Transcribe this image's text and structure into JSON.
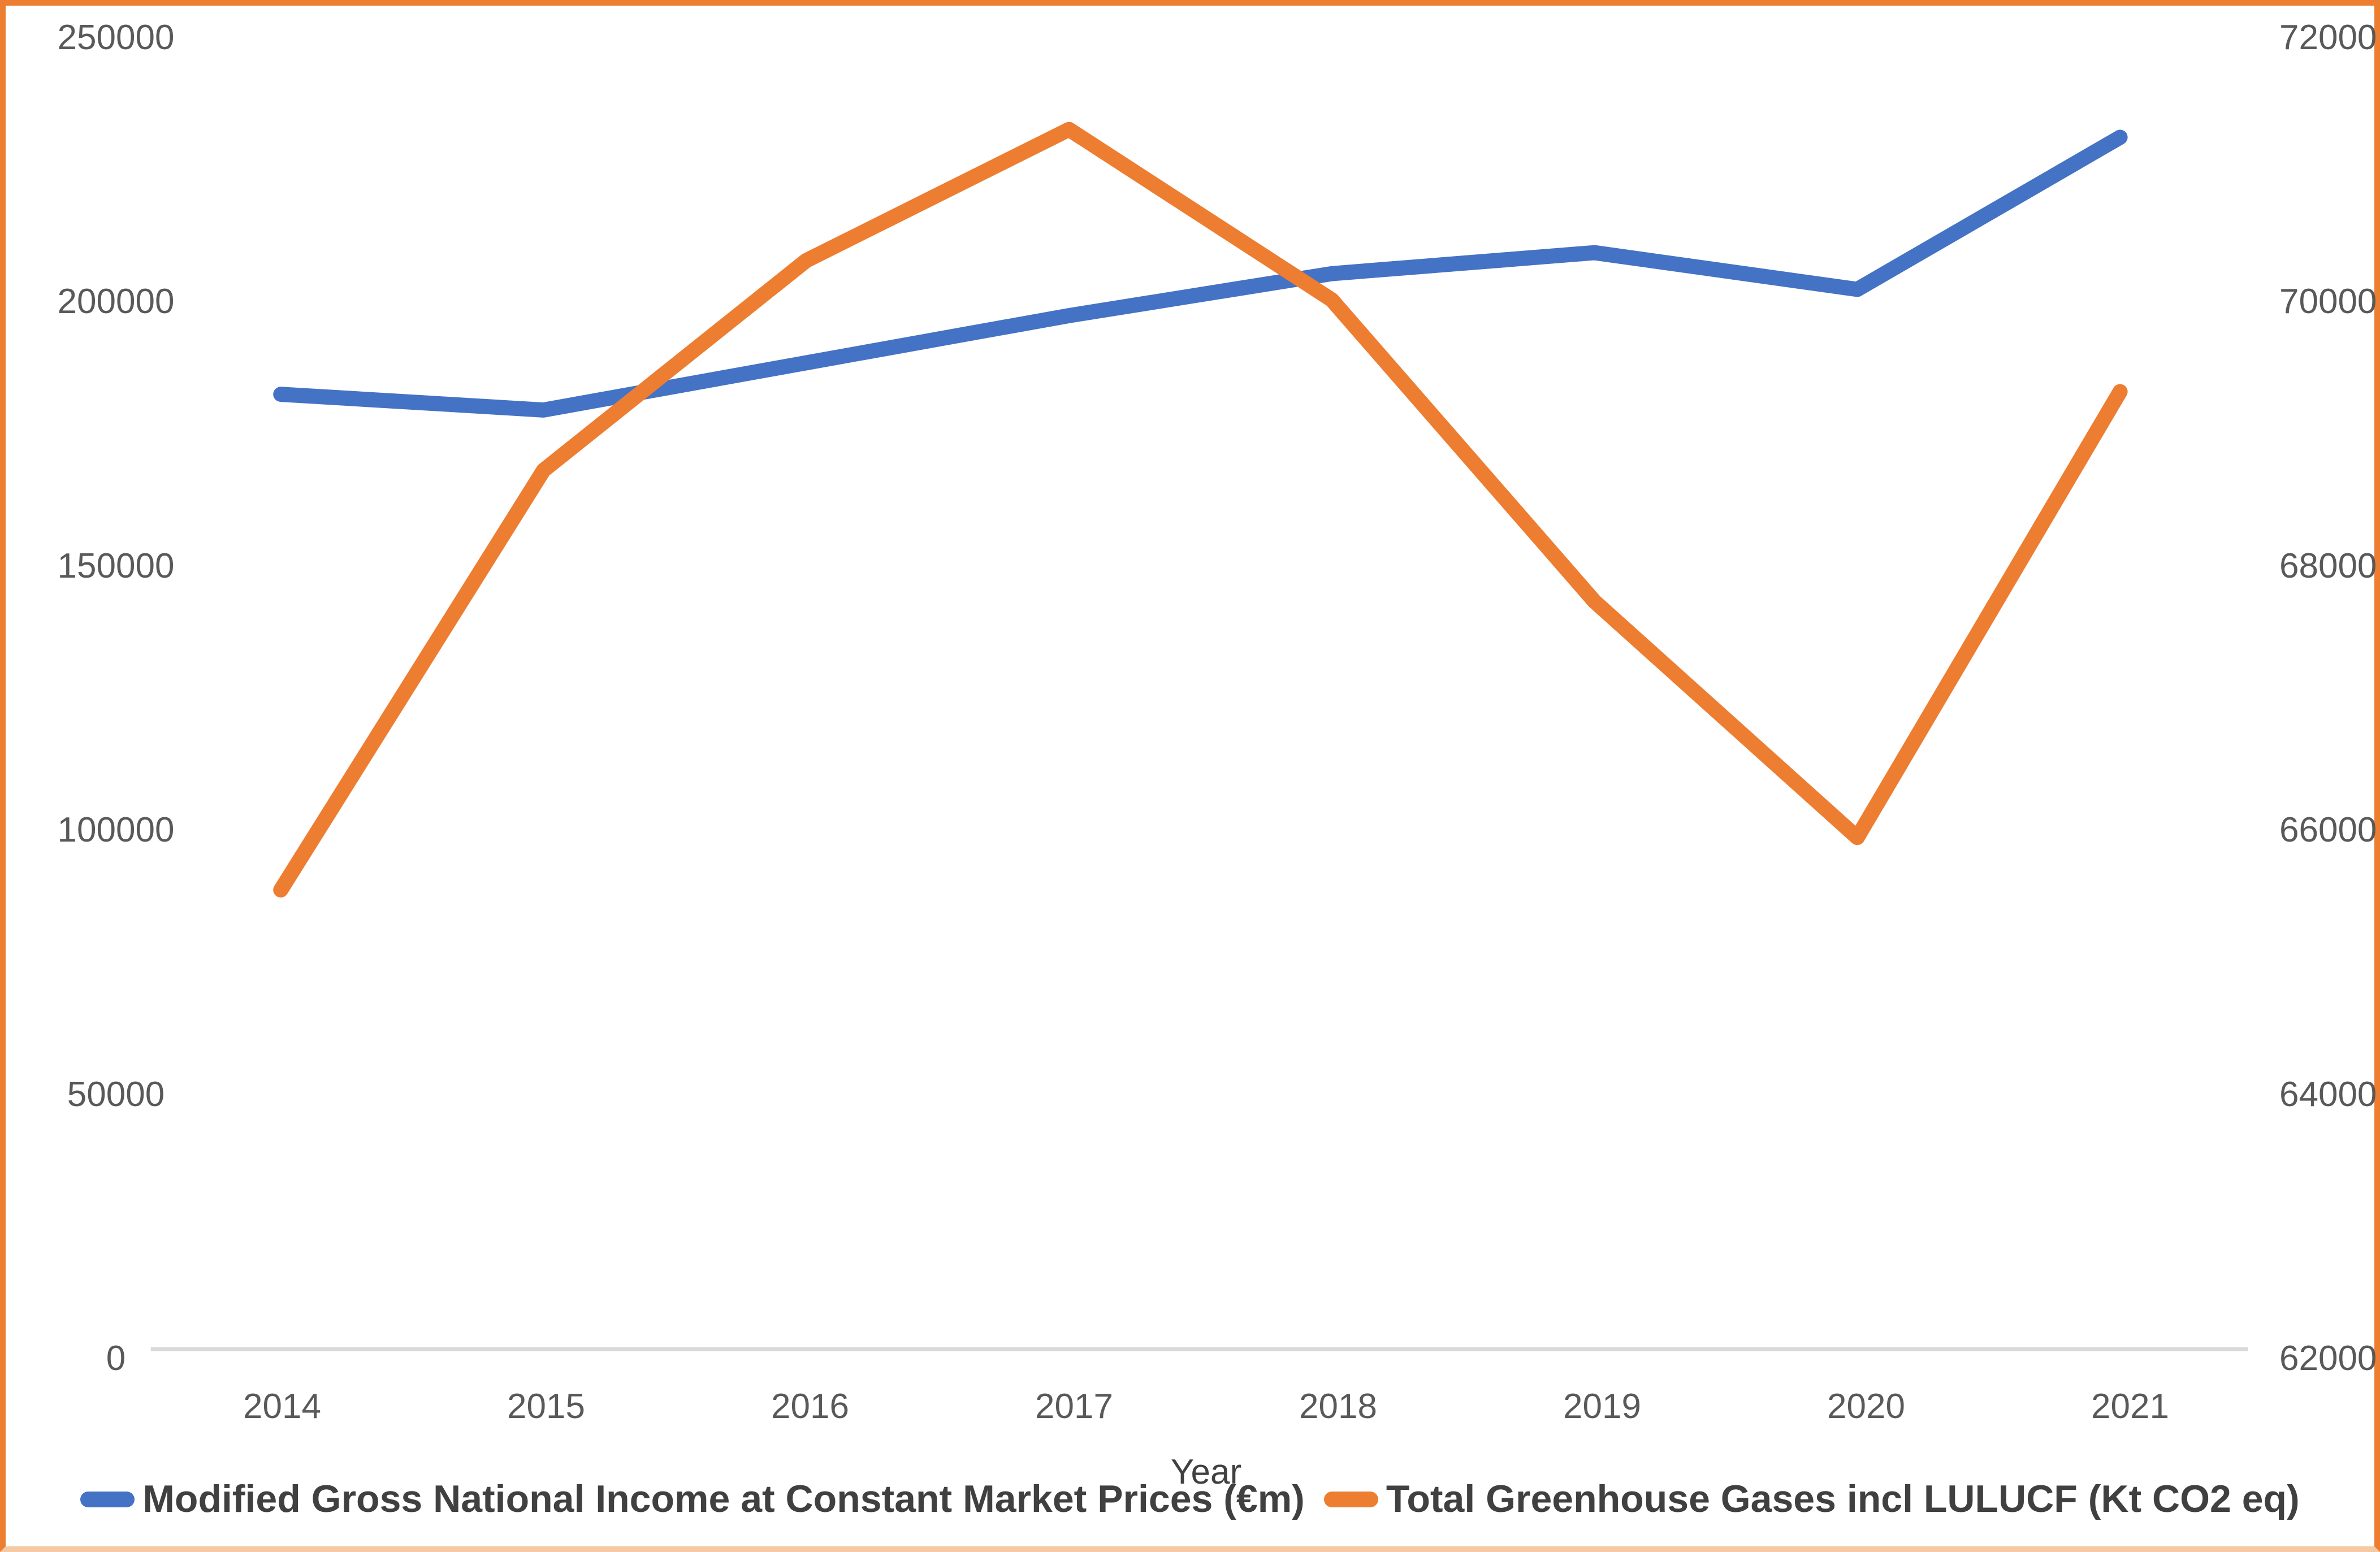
{
  "frame": {
    "background": "#FFFFFF",
    "border_color": "#ED7D31",
    "border_bottom_color": "#F5C9A4",
    "axis_line_color": "#D9D9D9",
    "tick_text_color": "#595959",
    "legend_text_color": "#404040"
  },
  "chart_data": {
    "type": "line",
    "title": "",
    "legend_position": "bottom",
    "grid": "baseline-only",
    "x": {
      "label": "Year",
      "categories": [
        "2014",
        "2015",
        "2016",
        "2017",
        "2018",
        "2019",
        "2020",
        "2021"
      ]
    },
    "y_left": {
      "min": 0,
      "max": 250000,
      "step": 50000,
      "ticks": [
        "250000",
        "200000",
        "150000",
        "100000",
        "50000",
        "0"
      ]
    },
    "y_right": {
      "min": 62000,
      "max": 72000,
      "step": 2000,
      "ticks": [
        "72000",
        "70000",
        "68000",
        "66000",
        "64000",
        "62000"
      ]
    },
    "series": [
      {
        "name": "Modified Gross National Income at Constant Market Prices (€m)",
        "axis": "left",
        "color": "#4472C4",
        "values": [
          182000,
          179000,
          188000,
          197000,
          205000,
          209000,
          202000,
          231000
        ]
      },
      {
        "name": "Total Greenhouse Gases incl LULUCF (Kt CO2 eq)",
        "axis": "right",
        "color": "#ED7D31",
        "values": [
          65500,
          68700,
          70300,
          71300,
          70000,
          67700,
          65900,
          69300
        ]
      }
    ]
  }
}
